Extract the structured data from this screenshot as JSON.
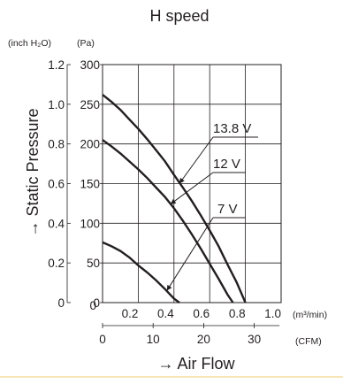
{
  "chart_data": {
    "type": "line",
    "title": "H speed",
    "ylabel": "→ Static Pressure",
    "xlabel": "→ Air Flow",
    "y_units_inch": "(inch H₂O)",
    "y_units_pa": "(Pa)",
    "x_units_m3": "(m³/min)",
    "x_units_cfm": "(CFM)",
    "xlim": [
      0,
      1.0
    ],
    "ylim": [
      0,
      300
    ],
    "grid": true,
    "x_ticks": [
      "0.2",
      "0.4",
      "0.6",
      "0.8",
      "1.0"
    ],
    "x_zero": "0",
    "y_pa_ticks": [
      "0",
      "50",
      "100",
      "150",
      "200",
      "250",
      "300"
    ],
    "y_inch_ticks": [
      "0",
      "0.2",
      "0.4",
      "0.6",
      "0.8",
      "1.0",
      "1.2"
    ],
    "cfm_ticks": [
      "0",
      "10",
      "20",
      "30"
    ],
    "series": [
      {
        "name": "13.8 V",
        "x": [
          0,
          0.05,
          0.1,
          0.15,
          0.2,
          0.25,
          0.3,
          0.35,
          0.4,
          0.45,
          0.5,
          0.55,
          0.6,
          0.65,
          0.7,
          0.75,
          0.8
        ],
        "y": [
          262,
          253,
          243,
          231,
          219,
          206,
          192,
          178,
          161,
          145,
          128,
          110,
          91,
          71,
          48,
          26,
          0
        ]
      },
      {
        "name": "12 V",
        "x": [
          0,
          0.05,
          0.1,
          0.15,
          0.2,
          0.25,
          0.3,
          0.35,
          0.4,
          0.45,
          0.5,
          0.55,
          0.6,
          0.65,
          0.7,
          0.73
        ],
        "y": [
          205,
          197,
          188,
          178,
          168,
          157,
          145,
          133,
          119,
          103,
          86,
          68,
          49,
          30,
          10,
          0
        ]
      },
      {
        "name": "7 V",
        "x": [
          0,
          0.05,
          0.1,
          0.15,
          0.2,
          0.25,
          0.3,
          0.35,
          0.4,
          0.43
        ],
        "y": [
          76,
          71,
          65,
          57,
          47,
          38,
          28,
          17,
          5,
          0
        ]
      }
    ]
  }
}
